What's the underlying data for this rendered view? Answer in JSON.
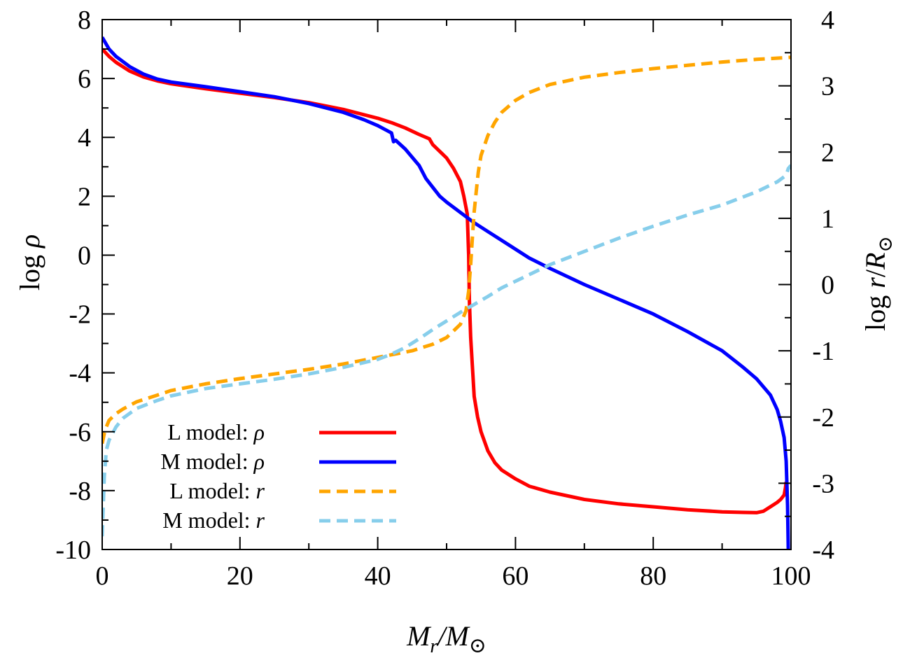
{
  "chart_data": {
    "type": "line",
    "title": "",
    "xlabel": "Mr/M⊙",
    "ylabel_left": "log ρ",
    "ylabel_right": "log r/R⊙",
    "xlim": [
      0,
      100
    ],
    "ylim_left": [
      -10,
      8
    ],
    "ylim_right": [
      -4,
      4
    ],
    "x_ticks": [
      "0",
      "20",
      "40",
      "60",
      "80",
      "100"
    ],
    "y_left_ticks": [
      "-10",
      "-8",
      "-6",
      "-4",
      "-2",
      "0",
      "2",
      "4",
      "6",
      "8"
    ],
    "y_right_ticks": [
      "-4",
      "-3",
      "-2",
      "-1",
      "0",
      "1",
      "2",
      "3",
      "4"
    ],
    "grid": false,
    "legend_position": "bottom-left",
    "series": [
      {
        "name": "L model: ρ",
        "label_text": "L model: ",
        "label_symbol": "ρ",
        "axis": "left",
        "color": "#ff0000",
        "dash": "solid",
        "x": [
          0,
          1,
          2,
          4,
          6,
          8,
          10,
          15,
          20,
          25,
          30,
          35,
          40,
          42,
          44,
          46,
          47.5,
          48,
          50,
          51,
          52,
          52.5,
          53,
          53.2,
          53.3,
          53.5,
          53.8,
          54,
          54.5,
          55,
          56,
          57,
          58,
          60,
          62,
          65,
          70,
          75,
          80,
          85,
          90,
          93,
          95,
          96,
          97,
          98,
          98.5,
          99,
          99.2,
          99.3
        ],
        "y": [
          7.0,
          6.75,
          6.55,
          6.25,
          6.05,
          5.92,
          5.82,
          5.65,
          5.5,
          5.35,
          5.18,
          4.95,
          4.65,
          4.5,
          4.32,
          4.1,
          3.95,
          3.75,
          3.3,
          2.95,
          2.5,
          2.0,
          1.4,
          0.0,
          -1.5,
          -2.8,
          -4.0,
          -4.8,
          -5.5,
          -6.0,
          -6.65,
          -7.05,
          -7.3,
          -7.6,
          -7.85,
          -8.05,
          -8.3,
          -8.45,
          -8.55,
          -8.65,
          -8.72,
          -8.74,
          -8.75,
          -8.7,
          -8.55,
          -8.4,
          -8.3,
          -8.15,
          -7.9,
          -7.7
        ]
      },
      {
        "name": "M model: ρ",
        "label_text": "M model: ",
        "label_symbol": "ρ",
        "axis": "left",
        "color": "#0000ff",
        "dash": "solid",
        "x": [
          0,
          1,
          2,
          4,
          6,
          8,
          10,
          15,
          20,
          25,
          30,
          35,
          38,
          40,
          42,
          42.3,
          42.6,
          44,
          46,
          47,
          48,
          49,
          50,
          52,
          54,
          56,
          58,
          60,
          62,
          65,
          70,
          75,
          80,
          85,
          90,
          93,
          95,
          97,
          98,
          98.5,
          99,
          99.3,
          99.5,
          99.6
        ],
        "y": [
          7.4,
          7.0,
          6.75,
          6.4,
          6.15,
          5.98,
          5.88,
          5.72,
          5.55,
          5.38,
          5.15,
          4.85,
          4.6,
          4.4,
          4.15,
          3.85,
          3.9,
          3.6,
          3.05,
          2.6,
          2.3,
          2.0,
          1.8,
          1.45,
          1.1,
          0.8,
          0.5,
          0.2,
          -0.1,
          -0.45,
          -1.0,
          -1.5,
          -2.0,
          -2.6,
          -3.25,
          -3.8,
          -4.2,
          -4.75,
          -5.25,
          -5.65,
          -6.2,
          -7.0,
          -8.5,
          -10.0
        ]
      },
      {
        "name": "L model: r",
        "label_text": "L model: ",
        "label_symbol": "r",
        "axis": "right",
        "color": "#ffa500",
        "dash": "dashed",
        "x": [
          0,
          0.3,
          0.6,
          1,
          2,
          3,
          5,
          8,
          10,
          15,
          20,
          25,
          30,
          35,
          40,
          45,
          48,
          50,
          52,
          52.8,
          53.2,
          53.5,
          53.8,
          54,
          54.3,
          54.6,
          55,
          56,
          57,
          58,
          60,
          62,
          65,
          70,
          75,
          80,
          85,
          90,
          95,
          100
        ],
        "y": [
          -2.4,
          -2.25,
          -2.15,
          -2.05,
          -1.95,
          -1.88,
          -1.77,
          -1.67,
          -1.6,
          -1.5,
          -1.42,
          -1.35,
          -1.28,
          -1.2,
          -1.1,
          -1.0,
          -0.9,
          -0.8,
          -0.6,
          -0.4,
          -0.1,
          0.3,
          0.8,
          1.1,
          1.4,
          1.7,
          1.95,
          2.25,
          2.45,
          2.6,
          2.78,
          2.9,
          3.02,
          3.13,
          3.2,
          3.26,
          3.31,
          3.36,
          3.4,
          3.43
        ]
      },
      {
        "name": "M model: r",
        "label_text": "M model: ",
        "label_symbol": "r",
        "axis": "right",
        "color": "#87ceeb",
        "dash": "dashed",
        "x": [
          0,
          0.3,
          0.6,
          1,
          2,
          3,
          5,
          8,
          10,
          15,
          20,
          25,
          30,
          35,
          40,
          42,
          44,
          46,
          48,
          50,
          52,
          54,
          56,
          58,
          60,
          62,
          65,
          70,
          75,
          80,
          85,
          90,
          95,
          98,
          99.3,
          99.6,
          100
        ],
        "y": [
          -3.8,
          -2.9,
          -2.5,
          -2.35,
          -2.15,
          -2.02,
          -1.87,
          -1.75,
          -1.68,
          -1.57,
          -1.5,
          -1.43,
          -1.35,
          -1.25,
          -1.13,
          -1.05,
          -0.95,
          -0.82,
          -0.68,
          -0.55,
          -0.42,
          -0.3,
          -0.18,
          -0.05,
          0.05,
          0.15,
          0.3,
          0.5,
          0.7,
          0.88,
          1.05,
          1.2,
          1.4,
          1.55,
          1.65,
          1.75,
          1.8
        ]
      }
    ]
  }
}
